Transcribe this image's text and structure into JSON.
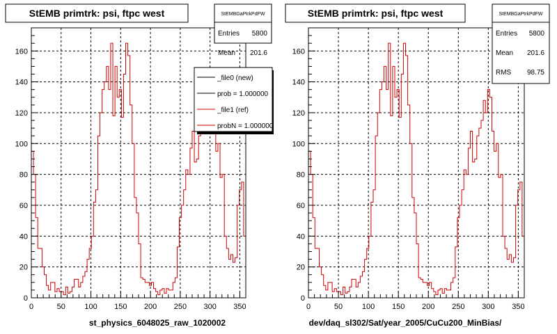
{
  "colors": {
    "hist": "#cc0000",
    "frame": "#000000",
    "grid": "#000000",
    "legend_new": "#000000",
    "legend_ref": "#cc0000"
  },
  "footer_note": "",
  "chart_data": [
    {
      "type": "histogram",
      "title": "StEMB primtrk: psi, ftpc west",
      "stats": {
        "header": "StEMBGaPtrkPdFW",
        "entries_label": "Entries",
        "entries": "5800",
        "mean_label": "Mean",
        "mean": "201.6"
      },
      "legend": {
        "placement": "top-right",
        "entries": [
          {
            "label": "_file0 (new)",
            "color": "#000000"
          },
          {
            "label": "prob = 1.000000",
            "color": "#000000"
          },
          {
            "label": "_file1 (ref)",
            "color": "#cc0000"
          },
          {
            "label": "probN = 1.000000",
            "color": "#cc0000"
          }
        ]
      },
      "xlabel": "st_physics_6048025_raw_1020002",
      "xlim": [
        0,
        360
      ],
      "ylim": [
        0,
        175
      ],
      "xticks": [
        0,
        50,
        100,
        150,
        200,
        250,
        300,
        350
      ],
      "yticks": [
        0,
        20,
        40,
        60,
        80,
        100,
        120,
        140,
        160
      ],
      "bin_width": 3.6,
      "grid": true
    },
    {
      "type": "histogram",
      "title": "StEMB primtrk: psi, ftpc west",
      "stats": {
        "header": "StEMBGaPtrkPdFW",
        "entries_label": "Entries",
        "entries": "5800",
        "mean_label": "Mean",
        "mean": "201.6",
        "rms_label": "RMS",
        "rms": "98.75"
      },
      "xlabel": "dev/daq_sl302/Sat/year_2005/CuCu200_MinBias/",
      "xlim": [
        0,
        360
      ],
      "ylim": [
        0,
        175
      ],
      "xticks": [
        0,
        50,
        100,
        150,
        200,
        250,
        300,
        350
      ],
      "yticks": [
        0,
        20,
        40,
        60,
        80,
        100,
        120,
        140,
        160
      ],
      "bin_width": 3.6,
      "grid": true
    }
  ],
  "hist_values": [
    95,
    80,
    52,
    32,
    32,
    20,
    15,
    8,
    5,
    10,
    10,
    4,
    6,
    4,
    4,
    2,
    7,
    3,
    4,
    7,
    12,
    12,
    7,
    10,
    14,
    17,
    25,
    32,
    40,
    62,
    70,
    105,
    120,
    135,
    140,
    150,
    135,
    165,
    118,
    150,
    130,
    135,
    117,
    145,
    165,
    157,
    125,
    100,
    65,
    55,
    35,
    13,
    12,
    10,
    10,
    8,
    10,
    6,
    4,
    2,
    5,
    6,
    3,
    6,
    5,
    5,
    10,
    13,
    33,
    52,
    60,
    70,
    83,
    80,
    97,
    108,
    88,
    90,
    105,
    110,
    115,
    128,
    120,
    135,
    130,
    108,
    95,
    100,
    78,
    80,
    40,
    32,
    25,
    28,
    23,
    26,
    60,
    70,
    75,
    40,
    90,
    80,
    62,
    70,
    97,
    98,
    87,
    88,
    96,
    98,
    91,
    97,
    92,
    78,
    86,
    93,
    89,
    91,
    99,
    97
  ]
}
